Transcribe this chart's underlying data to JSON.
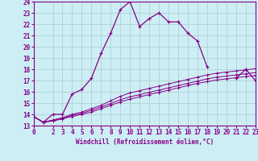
{
  "xlabel": "Windchill (Refroidissement éolien,°C)",
  "xlim": [
    0,
    23
  ],
  "ylim": [
    13,
    24
  ],
  "xticks": [
    0,
    2,
    3,
    4,
    5,
    6,
    7,
    8,
    9,
    10,
    11,
    12,
    13,
    14,
    15,
    16,
    17,
    18,
    19,
    20,
    21,
    22,
    23
  ],
  "yticks": [
    13,
    14,
    15,
    16,
    17,
    18,
    19,
    20,
    21,
    22,
    23,
    24
  ],
  "bg_color": "#cdeef5",
  "grid_color": "#aacccc",
  "line_color": "#880088",
  "hours": [
    0,
    1,
    2,
    3,
    4,
    5,
    6,
    7,
    8,
    9,
    10,
    11,
    12,
    13,
    14,
    15,
    16,
    17,
    18,
    19,
    20,
    21,
    22,
    23
  ],
  "main_curve": [
    13.8,
    13.3,
    14.0,
    14.0,
    15.8,
    16.2,
    17.2,
    19.4,
    21.2,
    23.3,
    24.0,
    21.8,
    22.5,
    23.0,
    22.2,
    22.2,
    21.2,
    20.5,
    18.2,
    null,
    null,
    17.2,
    18.0,
    17.0
  ],
  "ref_line1": [
    13.8,
    13.3,
    13.5,
    13.7,
    14.0,
    14.2,
    14.5,
    14.8,
    15.2,
    15.6,
    15.9,
    16.1,
    16.3,
    16.5,
    16.7,
    16.9,
    17.1,
    17.3,
    17.5,
    17.65,
    17.75,
    17.85,
    17.95,
    18.05
  ],
  "ref_line2": [
    13.8,
    13.3,
    13.45,
    13.65,
    13.9,
    14.1,
    14.35,
    14.65,
    14.95,
    15.3,
    15.55,
    15.75,
    15.95,
    16.15,
    16.35,
    16.55,
    16.75,
    16.95,
    17.15,
    17.3,
    17.4,
    17.5,
    17.6,
    17.7
  ],
  "ref_line3": [
    13.8,
    13.3,
    13.4,
    13.6,
    13.8,
    14.0,
    14.2,
    14.5,
    14.8,
    15.1,
    15.35,
    15.55,
    15.75,
    15.95,
    16.15,
    16.35,
    16.55,
    16.75,
    16.9,
    17.05,
    17.15,
    17.25,
    17.35,
    17.45
  ]
}
